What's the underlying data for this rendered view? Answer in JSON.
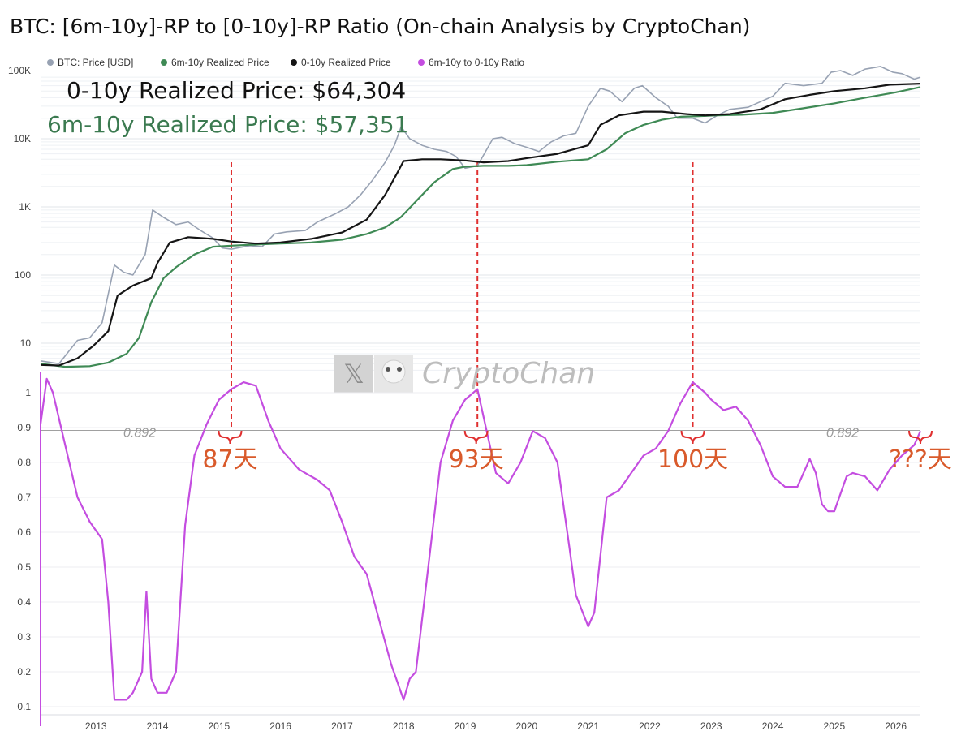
{
  "title": "BTC: [6m-10y]-RP to [0-10y]-RP Ratio (On-chain Analysis by CryptoChan)",
  "watermark": {
    "text": "CryptoChan",
    "icon_glyph": "𝕏",
    "icon": "x-logo-icon"
  },
  "annotations": {
    "rp_0_10y": "0-10y Realized Price: $64,304",
    "rp_6m_10y": "6m-10y Realized Price: $57,351",
    "ratio_ref_left": "0.892",
    "ratio_ref_right": "0.892",
    "days": [
      {
        "label": "87天",
        "year": 2015.18
      },
      {
        "label": "93天",
        "year": 2019.18
      },
      {
        "label": "100天",
        "year": 2022.7
      },
      {
        "label": "???天",
        "year": 2026.4
      }
    ]
  },
  "chart_data": [
    {
      "type": "line",
      "yscale": "log",
      "ylim": [
        4,
        150000
      ],
      "yticks": [
        {
          "value": 10,
          "label": "10"
        },
        {
          "value": 100,
          "label": "100"
        },
        {
          "value": 1000,
          "label": "1K"
        },
        {
          "value": 10000,
          "label": "10K"
        },
        {
          "value": 100000,
          "label": "100K"
        }
      ],
      "xlim": [
        2012.1,
        2026.4
      ],
      "legend": "top-left",
      "series": [
        {
          "name": "BTC: Price [USD]",
          "color": "#98a2b3",
          "x": [
            2012.1,
            2012.4,
            2012.7,
            2012.9,
            2013.1,
            2013.3,
            2013.45,
            2013.6,
            2013.8,
            2013.92,
            2014.1,
            2014.3,
            2014.5,
            2014.7,
            2014.9,
            2015.05,
            2015.2,
            2015.5,
            2015.7,
            2015.9,
            2016.1,
            2016.4,
            2016.6,
            2016.9,
            2017.1,
            2017.3,
            2017.5,
            2017.7,
            2017.85,
            2017.96,
            2018.1,
            2018.3,
            2018.5,
            2018.7,
            2018.85,
            2019.0,
            2019.2,
            2019.45,
            2019.6,
            2019.8,
            2020.0,
            2020.2,
            2020.4,
            2020.6,
            2020.8,
            2021.0,
            2021.2,
            2021.35,
            2021.55,
            2021.75,
            2021.88,
            2022.1,
            2022.3,
            2022.45,
            2022.7,
            2022.9,
            2023.1,
            2023.3,
            2023.6,
            2023.8,
            2024.0,
            2024.2,
            2024.5,
            2024.8,
            2024.95,
            2025.1,
            2025.3,
            2025.5,
            2025.75,
            2025.95,
            2026.1,
            2026.3,
            2026.4
          ],
          "y": [
            5.5,
            5,
            11,
            12,
            20,
            140,
            110,
            100,
            200,
            900,
            700,
            550,
            600,
            450,
            350,
            250,
            240,
            270,
            260,
            400,
            430,
            450,
            600,
            800,
            1000,
            1500,
            2500,
            4500,
            8000,
            15000,
            10000,
            8000,
            7000,
            6500,
            5500,
            3700,
            4000,
            10000,
            10500,
            8500,
            7500,
            6500,
            9000,
            11000,
            12000,
            30000,
            55000,
            50000,
            35000,
            55000,
            60000,
            40000,
            30000,
            20000,
            20000,
            17000,
            22000,
            27000,
            29000,
            35000,
            42000,
            65000,
            60000,
            65000,
            95000,
            100000,
            85000,
            105000,
            115000,
            95000,
            90000,
            75000,
            80000
          ]
        },
        {
          "name": "6m-10y Realized Price",
          "color": "#3f8a55",
          "x": [
            2012.1,
            2012.5,
            2012.9,
            2013.2,
            2013.5,
            2013.7,
            2013.9,
            2014.1,
            2014.3,
            2014.6,
            2014.9,
            2015.2,
            2015.6,
            2016.0,
            2016.5,
            2017.0,
            2017.4,
            2017.7,
            2017.95,
            2018.2,
            2018.5,
            2018.8,
            2019.0,
            2019.3,
            2019.7,
            2020.0,
            2020.5,
            2021.0,
            2021.3,
            2021.6,
            2021.9,
            2022.2,
            2022.5,
            2022.8,
            2023.1,
            2023.5,
            2024.0,
            2024.5,
            2025.0,
            2025.5,
            2026.0,
            2026.4
          ],
          "y": [
            5,
            4.5,
            4.6,
            5.2,
            7,
            12,
            40,
            90,
            130,
            200,
            260,
            270,
            280,
            290,
            300,
            330,
            400,
            500,
            700,
            1200,
            2300,
            3600,
            3900,
            4000,
            4000,
            4100,
            4600,
            5000,
            7000,
            12000,
            16000,
            19000,
            21000,
            21500,
            22000,
            22500,
            24000,
            28000,
            33000,
            40000,
            48000,
            57351
          ]
        },
        {
          "name": "0-10y Realized Price",
          "color": "#151515",
          "x": [
            2012.1,
            2012.4,
            2012.7,
            2012.95,
            2013.2,
            2013.35,
            2013.6,
            2013.9,
            2014.0,
            2014.2,
            2014.5,
            2014.9,
            2015.2,
            2015.6,
            2016.0,
            2016.5,
            2017.0,
            2017.4,
            2017.7,
            2017.9,
            2018.0,
            2018.3,
            2018.6,
            2019.0,
            2019.3,
            2019.7,
            2020.0,
            2020.5,
            2021.0,
            2021.2,
            2021.5,
            2021.9,
            2022.2,
            2022.6,
            2022.9,
            2023.3,
            2023.8,
            2024.2,
            2024.6,
            2025.0,
            2025.5,
            2025.9,
            2026.4
          ],
          "y": [
            4.8,
            4.7,
            6,
            9,
            15,
            50,
            70,
            90,
            150,
            300,
            360,
            340,
            310,
            290,
            300,
            340,
            420,
            650,
            1500,
            3200,
            4700,
            5000,
            5000,
            4800,
            4500,
            4700,
            5200,
            6000,
            8000,
            16000,
            22000,
            25000,
            25000,
            23000,
            22000,
            23000,
            27000,
            38000,
            44000,
            50000,
            55000,
            62000,
            64304
          ]
        }
      ],
      "reference_lines": [
        {
          "x": 2015.2,
          "style": "dashed",
          "color": "#e03030"
        },
        {
          "x": 2019.2,
          "style": "dashed",
          "color": "#e03030"
        },
        {
          "x": 2022.7,
          "style": "dashed",
          "color": "#e03030"
        }
      ]
    },
    {
      "type": "line",
      "ylim": [
        0.1,
        1.0
      ],
      "yticks": [
        0.1,
        0.2,
        0.3,
        0.4,
        0.5,
        0.6,
        0.7,
        0.8,
        0.9,
        1
      ],
      "xlim": [
        2012.1,
        2026.4
      ],
      "xticks": [
        2013,
        2014,
        2015,
        2016,
        2017,
        2018,
        2019,
        2020,
        2021,
        2022,
        2023,
        2024,
        2025,
        2026
      ],
      "reference_value": 0.892,
      "series": [
        {
          "name": "6m-10y to 0-10y Ratio",
          "color": "#c44de0",
          "x": [
            2012.1,
            2012.2,
            2012.3,
            2012.5,
            2012.7,
            2012.9,
            2013.1,
            2013.2,
            2013.3,
            2013.5,
            2013.6,
            2013.75,
            2013.82,
            2013.9,
            2014.0,
            2014.15,
            2014.3,
            2014.45,
            2014.6,
            2014.8,
            2015.0,
            2015.2,
            2015.4,
            2015.6,
            2015.8,
            2016.0,
            2016.3,
            2016.6,
            2016.8,
            2017.0,
            2017.2,
            2017.4,
            2017.6,
            2017.8,
            2018.0,
            2018.1,
            2018.2,
            2018.4,
            2018.6,
            2018.8,
            2019.0,
            2019.2,
            2019.3,
            2019.5,
            2019.7,
            2019.9,
            2020.1,
            2020.3,
            2020.5,
            2020.7,
            2020.8,
            2021.0,
            2021.1,
            2021.3,
            2021.5,
            2021.7,
            2021.9,
            2022.1,
            2022.3,
            2022.5,
            2022.7,
            2022.9,
            2023.0,
            2023.2,
            2023.4,
            2023.6,
            2023.8,
            2024.0,
            2024.2,
            2024.4,
            2024.6,
            2024.7,
            2024.8,
            2024.9,
            2025.0,
            2025.2,
            2025.3,
            2025.5,
            2025.7,
            2025.9,
            2026.1,
            2026.3,
            2026.4
          ],
          "y": [
            0.91,
            1.04,
            1.0,
            0.85,
            0.7,
            0.63,
            0.58,
            0.4,
            0.12,
            0.12,
            0.14,
            0.2,
            0.43,
            0.18,
            0.14,
            0.14,
            0.2,
            0.62,
            0.82,
            0.91,
            0.98,
            1.01,
            1.03,
            1.02,
            0.92,
            0.84,
            0.78,
            0.75,
            0.72,
            0.63,
            0.53,
            0.48,
            0.35,
            0.22,
            0.12,
            0.18,
            0.2,
            0.5,
            0.8,
            0.92,
            0.98,
            1.01,
            0.93,
            0.77,
            0.74,
            0.8,
            0.89,
            0.87,
            0.8,
            0.55,
            0.42,
            0.33,
            0.37,
            0.7,
            0.72,
            0.77,
            0.82,
            0.84,
            0.89,
            0.97,
            1.03,
            1.0,
            0.98,
            0.95,
            0.96,
            0.92,
            0.85,
            0.76,
            0.73,
            0.73,
            0.81,
            0.77,
            0.68,
            0.66,
            0.66,
            0.76,
            0.77,
            0.76,
            0.72,
            0.78,
            0.82,
            0.85,
            0.89
          ]
        }
      ]
    }
  ]
}
